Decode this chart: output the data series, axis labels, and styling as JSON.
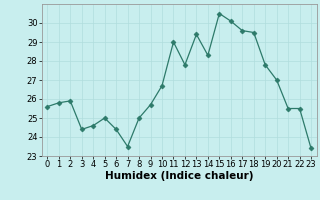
{
  "title": "",
  "xlabel": "Humidex (Indice chaleur)",
  "x": [
    0,
    1,
    2,
    3,
    4,
    5,
    6,
    7,
    8,
    9,
    10,
    11,
    12,
    13,
    14,
    15,
    16,
    17,
    18,
    19,
    20,
    21,
    22,
    23
  ],
  "y": [
    25.6,
    25.8,
    25.9,
    24.4,
    24.6,
    25.0,
    24.4,
    23.5,
    25.0,
    25.7,
    26.7,
    29.0,
    27.8,
    29.4,
    28.3,
    30.5,
    30.1,
    29.6,
    29.5,
    27.8,
    27.0,
    25.5,
    25.5,
    23.4
  ],
  "line_color": "#2d7a6a",
  "marker": "D",
  "marker_size": 2.5,
  "bg_color": "#c8eeee",
  "grid_color": "#b0dddd",
  "ylim": [
    23,
    31
  ],
  "yticks": [
    23,
    24,
    25,
    26,
    27,
    28,
    29,
    30
  ],
  "xlim": [
    -0.5,
    23.5
  ],
  "xticks": [
    0,
    1,
    2,
    3,
    4,
    5,
    6,
    7,
    8,
    9,
    10,
    11,
    12,
    13,
    14,
    15,
    16,
    17,
    18,
    19,
    20,
    21,
    22,
    23
  ],
  "tick_fontsize": 6,
  "xlabel_fontsize": 7.5
}
